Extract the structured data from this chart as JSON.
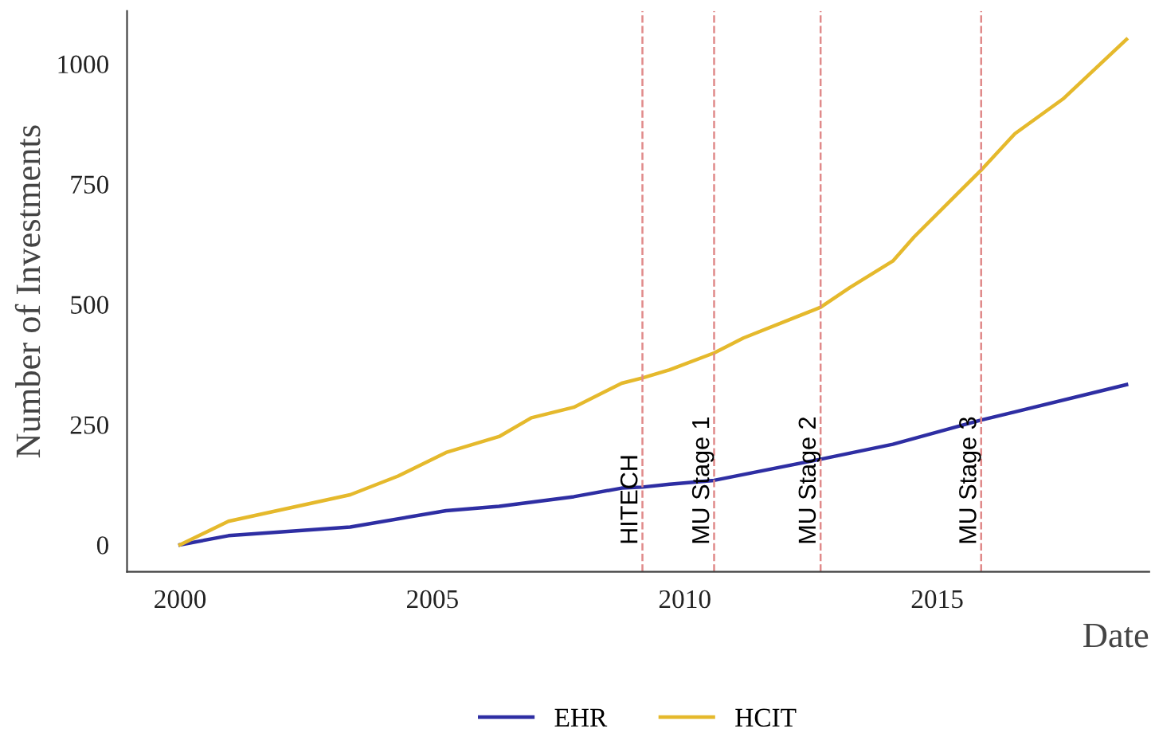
{
  "chart_data": {
    "type": "line",
    "xlabel": "Date",
    "ylabel": "Number of Investments",
    "xlim": [
      1998.95,
      2019.2
    ],
    "ylim": [
      -56,
      1110
    ],
    "xticks": [
      2000,
      2005,
      2010,
      2015
    ],
    "yticks": [
      0,
      250,
      500,
      750,
      1000
    ],
    "grid": false,
    "legend": "bottom",
    "line_style": "solid",
    "marker": "none",
    "series": [
      {
        "name": "EHR",
        "color": "#2e2ea3",
        "x": [
          2000.0,
          2000.96,
          2003.37,
          2005.27,
          2006.32,
          2007.8,
          2008.75,
          2009.16,
          2009.7,
          2010.58,
          2012.69,
          2014.12,
          2015.86,
          2018.75
        ],
        "values": [
          0,
          19,
          37,
          71,
          80,
          100,
          118,
          120,
          126,
          134,
          178,
          209,
          259,
          333
        ]
      },
      {
        "name": "HCIT",
        "color": "#e5b92c",
        "x": [
          2000.0,
          2000.96,
          2003.37,
          2004.32,
          2005.27,
          2006.32,
          2006.96,
          2007.8,
          2008.75,
          2009.16,
          2009.7,
          2010.58,
          2011.16,
          2012.69,
          2013.27,
          2014.12,
          2014.54,
          2015.38,
          2015.86,
          2016.54,
          2017.49,
          2018.75
        ],
        "values": [
          0,
          49,
          104,
          143,
          192,
          225,
          264,
          286,
          336,
          347,
          364,
          399,
          430,
          494,
          535,
          590,
          640,
          728,
          778,
          855,
          927,
          1051
        ]
      }
    ],
    "ref_lines": [
      {
        "axis": "x",
        "value": 2009.16,
        "label": "HITECH",
        "color": "#e08a8a",
        "line_style": "dashed"
      },
      {
        "axis": "x",
        "value": 2010.58,
        "label": "MU Stage 1",
        "color": "#e08a8a",
        "line_style": "dashed"
      },
      {
        "axis": "x",
        "value": 2012.69,
        "label": "MU Stage 2",
        "color": "#e08a8a",
        "line_style": "dashed"
      },
      {
        "axis": "x",
        "value": 2015.87,
        "label": "MU Stage 3",
        "color": "#e08a8a",
        "line_style": "dashed"
      }
    ]
  }
}
